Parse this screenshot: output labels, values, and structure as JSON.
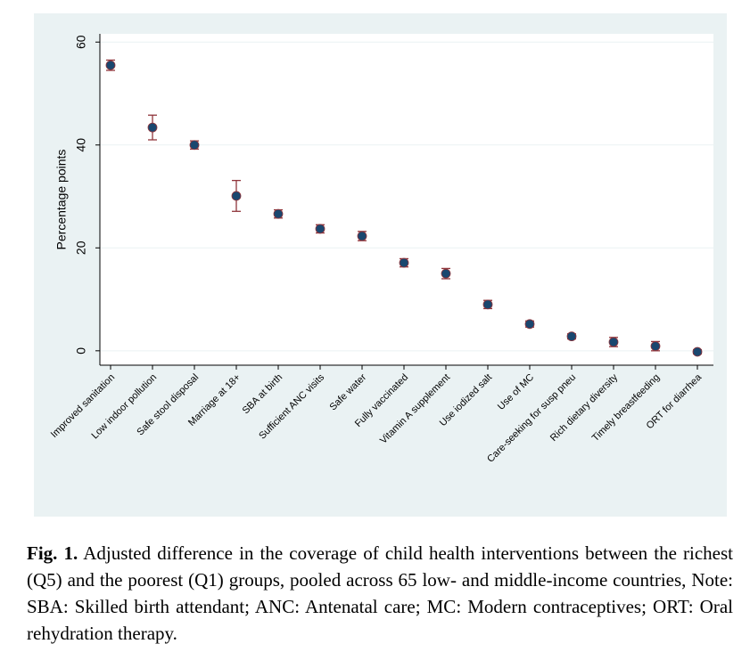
{
  "chart_data": {
    "type": "errorbar",
    "y_label": "Percentage points",
    "categories": [
      "Improved sanitation",
      "Low indoor pollution",
      "Safe stool disposal",
      "Marriage at 18+",
      "SBA at birth",
      "Sufficient ANC visits",
      "Safe water",
      "Fully vaccinated",
      "Vitamin A supplement",
      "Use iodized salt",
      "Use of MC",
      "Care-seeking for susp pneu",
      "Rich dietary diversity",
      "Timely breastfeeding",
      "ORT for diarrhea"
    ],
    "values": [
      55.5,
      43.4,
      40.0,
      30.1,
      26.6,
      23.7,
      22.3,
      17.1,
      15.0,
      9.0,
      5.2,
      2.8,
      1.7,
      0.9,
      -0.2
    ],
    "errors": [
      1.0,
      2.4,
      0.8,
      3.0,
      0.8,
      0.8,
      0.9,
      0.8,
      1.0,
      0.8,
      0.6,
      0.5,
      0.9,
      0.9,
      0.4
    ],
    "color": "#1a476f",
    "error_color": "#90353b",
    "ylim": [
      -2.8,
      61.6
    ],
    "yticks": [
      0,
      20,
      40,
      60
    ],
    "grid": true
  },
  "caption": {
    "label": "Fig. 1.",
    "text": "Adjusted difference in the coverage of child health interventions between the richest (Q5) and the poorest (Q1) groups, pooled across 65 low- and middle-income countries, Note: SBA: Skilled birth attendant; ANC: Antenatal care; MC: Modern contraceptives; ORT: Oral rehydration therapy."
  }
}
